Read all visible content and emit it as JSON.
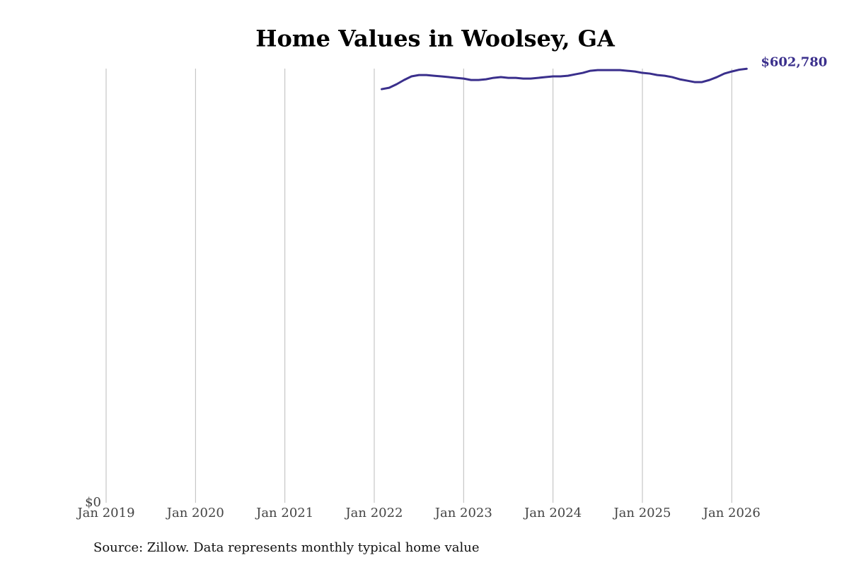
{
  "chart_data": {
    "type": "line",
    "title": "Home Values in Woolsey, GA",
    "source": "Source: Zillow. Data represents monthly typical home value",
    "x": [
      "2022-02",
      "2022-03",
      "2022-04",
      "2022-05",
      "2022-06",
      "2022-07",
      "2022-08",
      "2022-09",
      "2022-10",
      "2022-11",
      "2022-12",
      "2023-01",
      "2023-02",
      "2023-03",
      "2023-04",
      "2023-05",
      "2023-06",
      "2023-07",
      "2023-08",
      "2023-09",
      "2023-10",
      "2023-11",
      "2023-12",
      "2024-01",
      "2024-02",
      "2024-03",
      "2024-04",
      "2024-05",
      "2024-06",
      "2024-07",
      "2024-08",
      "2024-09",
      "2024-10",
      "2024-11",
      "2024-12",
      "2025-01",
      "2025-02",
      "2025-03",
      "2025-04",
      "2025-05",
      "2025-06",
      "2025-07",
      "2025-08",
      "2025-09",
      "2025-10",
      "2025-11",
      "2025-12",
      "2026-01",
      "2026-02",
      "2026-03"
    ],
    "series": [
      {
        "name": "Woolsey, GA",
        "color": "#3a2f8c",
        "values": [
          574500,
          576400,
          581300,
          587200,
          592200,
          594100,
          594100,
          593100,
          592200,
          591200,
          590200,
          589200,
          587200,
          587200,
          588200,
          590200,
          591200,
          590200,
          590200,
          589200,
          589200,
          590200,
          591200,
          592200,
          592200,
          593100,
          595100,
          597100,
          600000,
          601000,
          601000,
          601000,
          601000,
          600000,
          599000,
          597100,
          596100,
          594100,
          593100,
          591200,
          588200,
          586300,
          584300,
          584300,
          587200,
          591200,
          596100,
          599000,
          601500,
          602780
        ],
        "value_labels": [
          null,
          null,
          null,
          null,
          null,
          null,
          null,
          null,
          null,
          null,
          null,
          null,
          null,
          null,
          null,
          null,
          null,
          null,
          null,
          null,
          null,
          null,
          null,
          null,
          null,
          null,
          null,
          null,
          null,
          null,
          null,
          null,
          null,
          null,
          null,
          null,
          null,
          null,
          null,
          null,
          null,
          null,
          null,
          null,
          null,
          null,
          null,
          null,
          null,
          "$602,780"
        ]
      }
    ],
    "xlim": [
      "2019-01",
      "2026-08"
    ],
    "xticks": [
      {
        "value": "2019-01",
        "label": "Jan 2019"
      },
      {
        "value": "2020-01",
        "label": "Jan 2020"
      },
      {
        "value": "2021-01",
        "label": "Jan 2021"
      },
      {
        "value": "2022-01",
        "label": "Jan 2022"
      },
      {
        "value": "2023-01",
        "label": "Jan 2023"
      },
      {
        "value": "2024-01",
        "label": "Jan 2024"
      },
      {
        "value": "2025-01",
        "label": "Jan 2025"
      },
      {
        "value": "2026-01",
        "label": "Jan 2026"
      }
    ],
    "ylim": [
      0,
      605000
    ],
    "yticks": [
      {
        "value": 0,
        "label": "$0"
      }
    ],
    "grid": true
  }
}
